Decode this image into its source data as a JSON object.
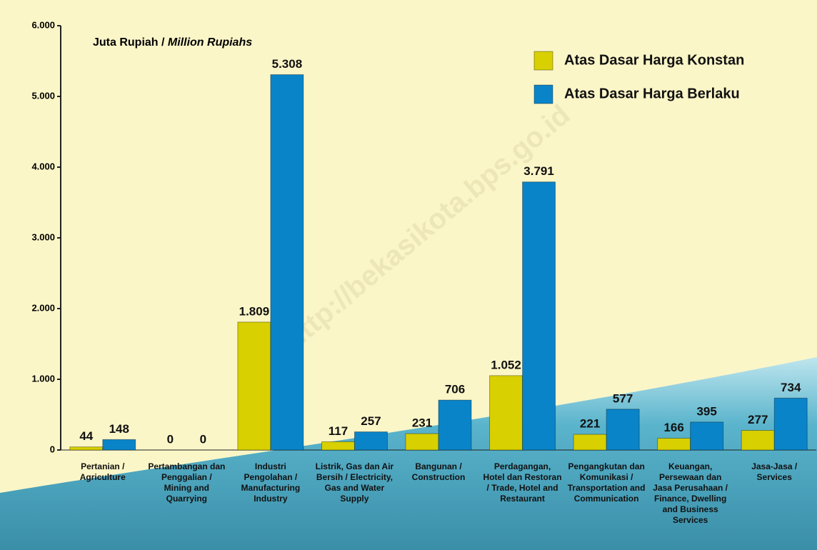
{
  "chart_data": {
    "type": "bar",
    "y_label": "Juta Rupiah /",
    "y_label_en": "Million Rupiahs",
    "watermark": "http://bekasikota.bps.go.id",
    "categories": [
      "Pertanian / Agriculture",
      "Pertambangan dan Penggalian / Mining and Quarrying",
      "Industri Pengolahan / Manufacturing Industry",
      "Listrik, Gas dan Air Bersih / Electricity, Gas and Water Supply",
      "Bangunan / Construction",
      "Perdagangan, Hotel dan Restoran / Trade, Hotel and Restaurant",
      "Pengangkutan dan Komunikasi / Transportation and Communication",
      "Keuangan, Persewaan dan Jasa Perusahaan / Finance, Dwelling and Business Services",
      "Jasa-Jasa / Services"
    ],
    "series": [
      {
        "name": "Atas Dasar Harga Konstan",
        "color": "#d8d000",
        "values": [
          44,
          0,
          1809,
          117,
          231,
          1052,
          221,
          166,
          277
        ],
        "value_labels": [
          "44",
          "0",
          "1.809",
          "117",
          "231",
          "1.052",
          "221",
          "166",
          "277"
        ]
      },
      {
        "name": "Atas Dasar Harga Berlaku",
        "color": "#0a84c8",
        "values": [
          148,
          0,
          5308,
          257,
          706,
          3791,
          577,
          395,
          734
        ],
        "value_labels": [
          "148",
          "0",
          "5.308",
          "257",
          "706",
          "3.791",
          "577",
          "395",
          "734"
        ]
      }
    ],
    "ylim": [
      0,
      6000
    ],
    "yticks": [
      0,
      {
        "value": 1000,
        "label": "1.000"
      },
      {
        "value": 2000,
        "label": "2.000"
      },
      {
        "value": 3000,
        "label": "3.000"
      },
      {
        "value": 4000,
        "label": "4.000"
      },
      {
        "value": 5000,
        "label": "5.000"
      },
      {
        "value": 6000,
        "label": "6.000"
      }
    ],
    "legend": "top-right"
  }
}
